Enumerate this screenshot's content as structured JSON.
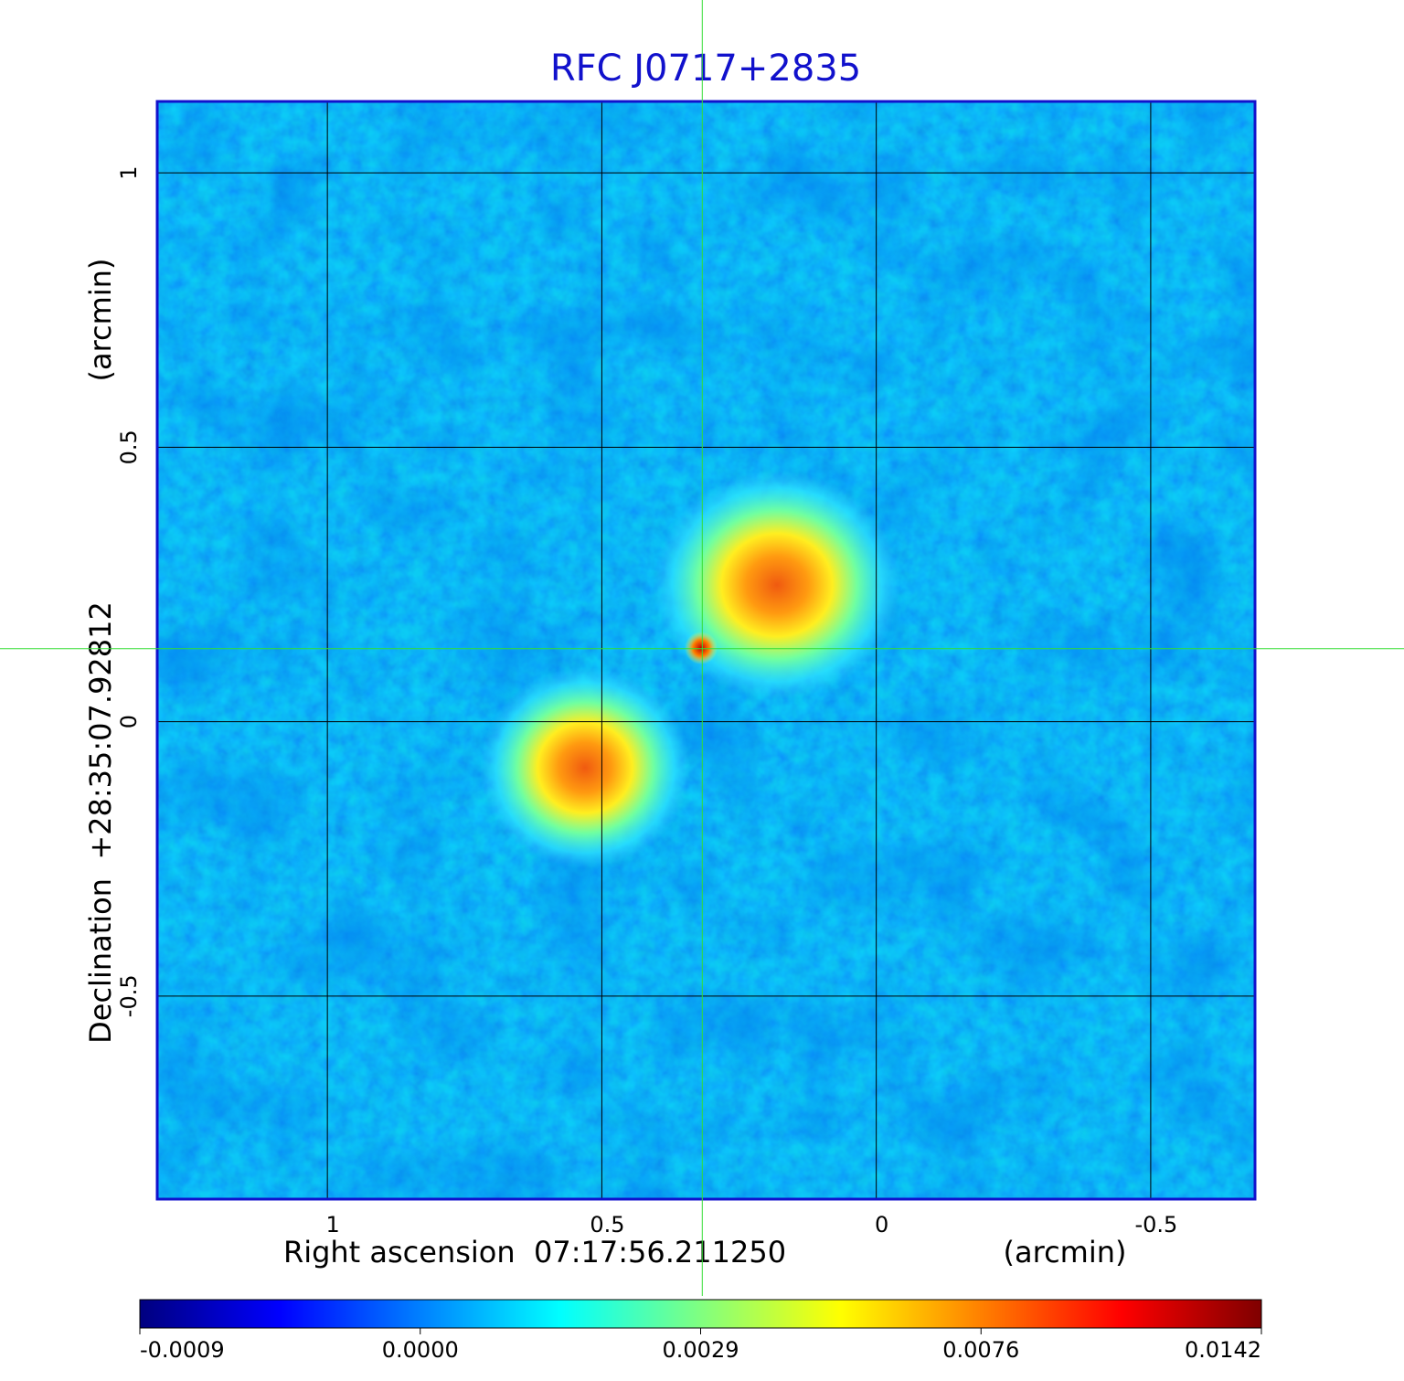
{
  "chart_data": {
    "type": "image",
    "title": "RFC J0717+2835",
    "x_label": "Right ascension  07:17:56.211250",
    "x_unit": "(arcmin)",
    "y_label": "Declination  +28:35:07.92812",
    "y_unit": "(arcmin)",
    "xlim": [
      1.31,
      -0.69
    ],
    "ylim": [
      -0.87,
      1.13
    ],
    "xticks": [
      1.0,
      0.5,
      0.0,
      -0.5
    ],
    "yticks": [
      -0.5,
      0.0,
      0.5,
      1.0
    ],
    "grid": true,
    "crosshair": {
      "x": 0.317,
      "y": 0.133,
      "color": "#33dd33"
    },
    "frame_color": "#1111cc",
    "title_color": "#1111cc",
    "colorbar": {
      "ticks": [
        -0.0009,
        {
          "value": 0,
          "label": "0.0000"
        },
        0.0029,
        0.0076,
        0.0142
      ],
      "colors": [
        "#00007f",
        "#0000ff",
        "#0080ff",
        "#00ffff",
        "#80ff80",
        "#ffff00",
        "#ff8000",
        "#ff0000",
        "#7f0000"
      ]
    }
  }
}
